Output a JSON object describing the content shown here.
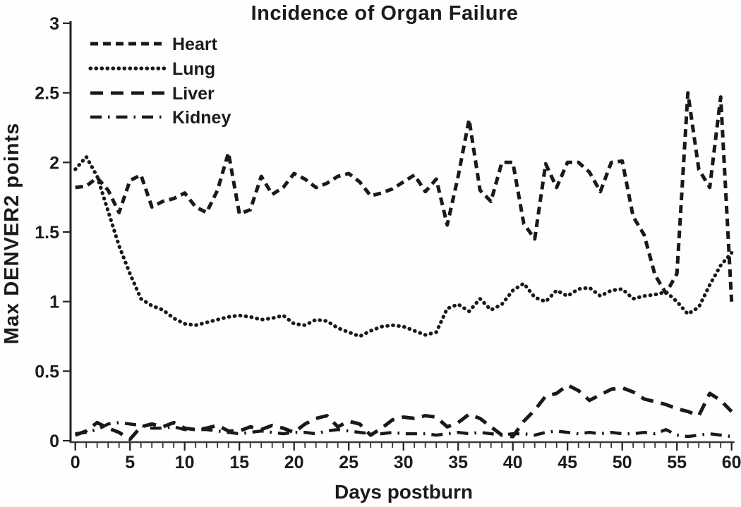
{
  "title": "Incidence of Organ Failure",
  "x_axis": {
    "label": "Days postburn",
    "min": 0,
    "max": 60,
    "major_tick_values": [
      0,
      5,
      10,
      15,
      20,
      25,
      30,
      35,
      40,
      45,
      50,
      55,
      60
    ],
    "major_tick_labels": [
      "0",
      "5",
      "10",
      "15",
      "20",
      "25",
      "30",
      "35",
      "40",
      "45",
      "50",
      "55",
      "60"
    ],
    "minor_tick_step": 1
  },
  "y_axis": {
    "label": "Max DENVER2 points",
    "min": 0,
    "max": 3,
    "tick_values": [
      0,
      0.5,
      1,
      1.5,
      2,
      2.5,
      3
    ],
    "tick_labels": [
      "0",
      "0.5",
      "1",
      "1.5",
      "2",
      "2.5",
      "3"
    ]
  },
  "colors": {
    "line": "#191919",
    "text": "#1b1b1b",
    "background": "#fefefe"
  },
  "legend": {
    "position": "top-left-inside",
    "entries": [
      "Heart",
      "Lung",
      "Liver",
      "Kidney"
    ]
  },
  "chart_data": {
    "type": "line",
    "title": "Incidence of Organ Failure",
    "xlabel": "Days postburn",
    "ylabel": "Max DENVER2 points",
    "xlim": [
      0,
      60
    ],
    "ylim": [
      0,
      3
    ],
    "grid": false,
    "x": [
      0,
      1,
      2,
      3,
      4,
      5,
      6,
      7,
      8,
      9,
      10,
      11,
      12,
      13,
      14,
      15,
      16,
      17,
      18,
      19,
      20,
      21,
      22,
      23,
      24,
      25,
      26,
      27,
      28,
      29,
      30,
      31,
      32,
      33,
      34,
      35,
      36,
      37,
      38,
      39,
      40,
      41,
      42,
      43,
      44,
      45,
      46,
      47,
      48,
      49,
      50,
      51,
      52,
      53,
      54,
      55,
      56,
      57,
      58,
      59,
      60
    ],
    "series": [
      {
        "name": "Heart",
        "style": "dashed",
        "values": [
          1.82,
          1.83,
          1.89,
          1.8,
          1.64,
          1.87,
          1.91,
          1.68,
          1.72,
          1.74,
          1.78,
          1.68,
          1.64,
          1.8,
          2.07,
          1.63,
          1.66,
          1.9,
          1.77,
          1.82,
          1.92,
          1.88,
          1.82,
          1.85,
          1.9,
          1.92,
          1.86,
          1.76,
          1.78,
          1.81,
          1.86,
          1.91,
          1.79,
          1.88,
          1.55,
          1.9,
          2.31,
          1.8,
          1.72,
          2.0,
          2.0,
          1.56,
          1.45,
          1.99,
          1.82,
          2.0,
          2.0,
          1.93,
          1.79,
          2.0,
          2.01,
          1.61,
          1.48,
          1.19,
          1.06,
          1.2,
          2.5,
          1.95,
          1.82,
          2.47,
          1.0
        ]
      },
      {
        "name": "Lung",
        "style": "dotted",
        "values": [
          1.95,
          2.04,
          1.9,
          1.65,
          1.4,
          1.2,
          1.02,
          0.97,
          0.94,
          0.88,
          0.84,
          0.83,
          0.85,
          0.87,
          0.89,
          0.9,
          0.89,
          0.87,
          0.88,
          0.9,
          0.84,
          0.83,
          0.87,
          0.86,
          0.81,
          0.78,
          0.75,
          0.79,
          0.82,
          0.83,
          0.82,
          0.79,
          0.76,
          0.78,
          0.95,
          0.98,
          0.93,
          1.02,
          0.94,
          0.98,
          1.08,
          1.13,
          1.03,
          1.0,
          1.08,
          1.04,
          1.09,
          1.1,
          1.04,
          1.08,
          1.09,
          1.02,
          1.04,
          1.05,
          1.07,
          1.0,
          0.91,
          0.96,
          1.12,
          1.26,
          1.35
        ]
      },
      {
        "name": "Liver",
        "style": "long-dash",
        "values": [
          0.04,
          0.07,
          0.13,
          0.09,
          0.06,
          0.01,
          0.1,
          0.12,
          0.1,
          0.13,
          0.09,
          0.08,
          0.09,
          0.11,
          0.07,
          0.07,
          0.1,
          0.08,
          0.11,
          0.09,
          0.06,
          0.12,
          0.16,
          0.18,
          0.1,
          0.14,
          0.12,
          0.04,
          0.09,
          0.15,
          0.17,
          0.16,
          0.18,
          0.17,
          0.1,
          0.13,
          0.19,
          0.16,
          0.1,
          0.04,
          0.03,
          0.14,
          0.22,
          0.32,
          0.34,
          0.4,
          0.36,
          0.29,
          0.33,
          0.37,
          0.38,
          0.35,
          0.3,
          0.28,
          0.26,
          0.23,
          0.21,
          0.18,
          0.34,
          0.29,
          0.21
        ]
      },
      {
        "name": "Kidney",
        "style": "dash-dot",
        "values": [
          0.05,
          0.06,
          0.08,
          0.12,
          0.13,
          0.12,
          0.11,
          0.09,
          0.09,
          0.1,
          0.08,
          0.08,
          0.08,
          0.07,
          0.06,
          0.05,
          0.06,
          0.07,
          0.06,
          0.05,
          0.06,
          0.06,
          0.05,
          0.07,
          0.08,
          0.07,
          0.06,
          0.05,
          0.05,
          0.06,
          0.05,
          0.05,
          0.05,
          0.04,
          0.05,
          0.06,
          0.05,
          0.06,
          0.05,
          0.04,
          0.05,
          0.05,
          0.04,
          0.06,
          0.07,
          0.06,
          0.05,
          0.06,
          0.05,
          0.06,
          0.05,
          0.05,
          0.06,
          0.05,
          0.08,
          0.04,
          0.03,
          0.04,
          0.05,
          0.04,
          0.03
        ]
      }
    ]
  }
}
